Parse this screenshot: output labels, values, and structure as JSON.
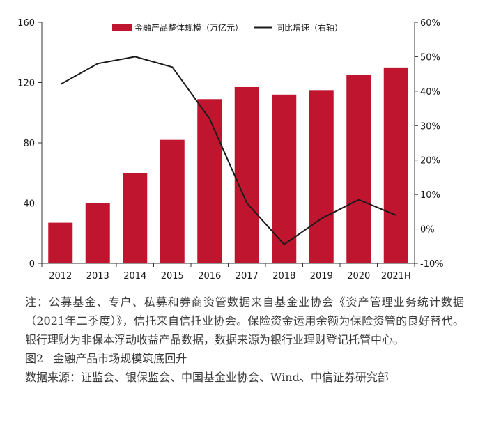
{
  "chart_data": {
    "type": "bar",
    "categories": [
      "2012",
      "2013",
      "2014",
      "2015",
      "2016",
      "2017",
      "2018",
      "2019",
      "2020",
      "2021H"
    ],
    "series": [
      {
        "name": "金融产品整体规模（万亿元）",
        "type": "bar",
        "axis": "left",
        "color": "#c0152f",
        "values": [
          27,
          40,
          60,
          82,
          109,
          117,
          112,
          115,
          125,
          130
        ]
      },
      {
        "name": "同比增速（右轴）",
        "type": "line",
        "axis": "right",
        "color": "#1a1a1a",
        "values": [
          42,
          48,
          50,
          47,
          32,
          7.5,
          -4.5,
          3,
          8.5,
          4
        ]
      }
    ],
    "y_left": {
      "lim": [
        0,
        160
      ],
      "ticks": [
        "0",
        "40",
        "80",
        "120",
        "160"
      ]
    },
    "y_right": {
      "lim": [
        -10,
        60
      ],
      "ticks": [
        "-10%",
        "0%",
        "10%",
        "20%",
        "30%",
        "40%",
        "50%",
        "60%"
      ]
    },
    "legend": {
      "placement": "top"
    },
    "grid": false
  },
  "notes": {
    "body": "注：公募基金、专户、私募和券商资管数据来自基金业协会《资产管理业务统计数据（2021年二季度）》，信托来自信托业协会。保险资金运用余额为保险资管的良好替代。银行理财为非保本浮动收益产品数据，数据来源为银行业理财登记托管中心。",
    "figure_number": "图2",
    "figure_title": "金融产品市场规模筑底回升",
    "source": "数据来源：证监会、银保监会、中国基金业协会、Wind、中信证券研究部"
  }
}
